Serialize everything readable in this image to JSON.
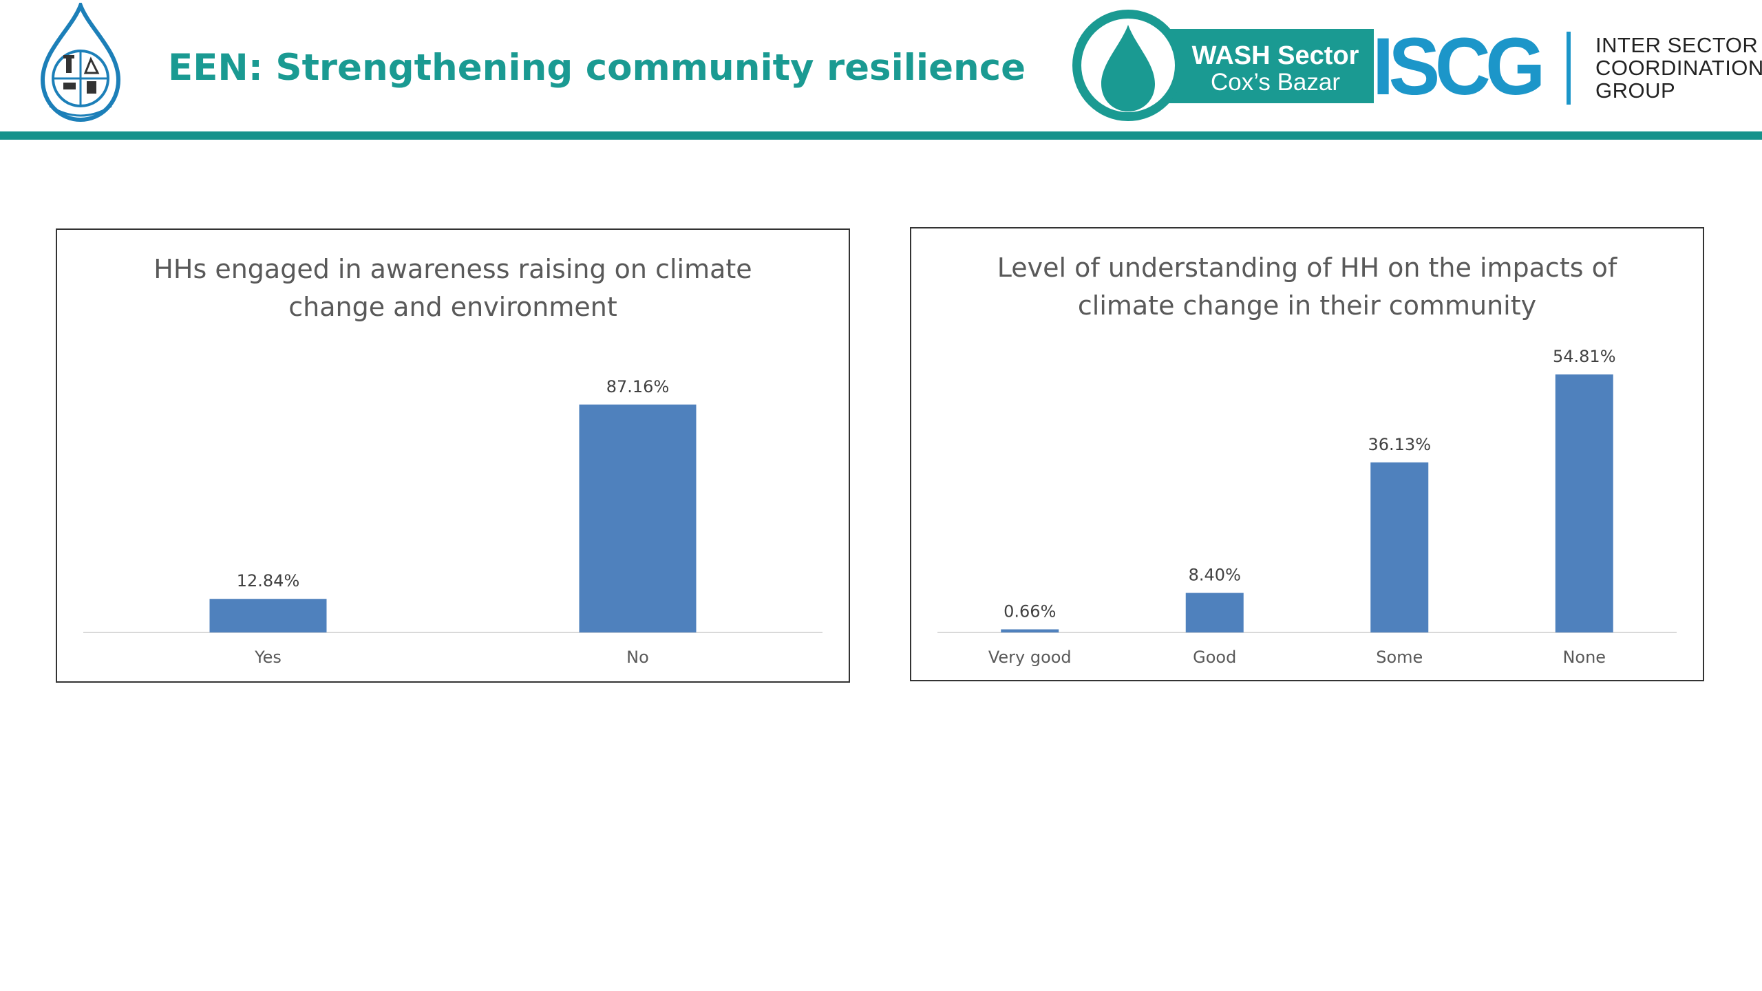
{
  "header": {
    "title": "EEN: Strengthening community resilience",
    "logos": {
      "left_emblem": "dphe-emblem",
      "wash_badge_line1": "WASH Sector",
      "wash_badge_line2": "Cox’s Bazar",
      "iscg_word": "ISCG",
      "iscg_line1": "INTER SECTOR",
      "iscg_line2": "COORDINATION",
      "iscg_line3": "GROUP"
    },
    "colors": {
      "title": "#1a9a92",
      "rule": "#16928b",
      "wash_teal": "#1a9a92",
      "iscg_blue": "#1c96c9"
    }
  },
  "chart_data": [
    {
      "type": "bar",
      "title_lines": [
        "HHs engaged in awareness raising on climate",
        "change and environment"
      ],
      "categories": [
        "Yes",
        "No"
      ],
      "values": [
        12.84,
        87.16
      ],
      "data_labels": [
        "12.84%",
        "87.16%"
      ],
      "ylim": [
        0,
        100
      ],
      "unit": "%",
      "grid": false,
      "legend": "none",
      "bar_color": "#4f81bd"
    },
    {
      "type": "bar",
      "title_lines": [
        "Level of understanding  of HH on the impacts of",
        "climate change in their community"
      ],
      "categories": [
        "Very good",
        "Good",
        "Some",
        "None"
      ],
      "values": [
        0.66,
        8.4,
        36.13,
        54.81
      ],
      "data_labels": [
        "0.66%",
        "8.40%",
        "36.13%",
        "54.81%"
      ],
      "ylim": [
        0,
        56
      ],
      "unit": "%",
      "grid": false,
      "legend": "none",
      "bar_color": "#4f81bd"
    }
  ]
}
